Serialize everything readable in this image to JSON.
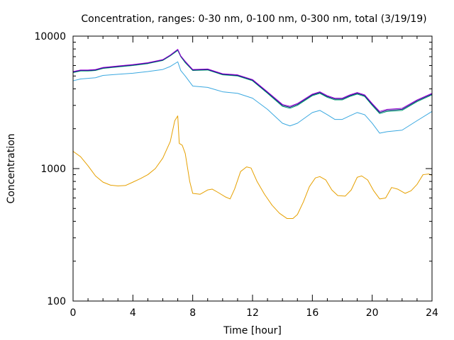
{
  "chart_data": {
    "type": "line",
    "title": "Concentration, ranges: 0-30 nm, 0-100 nm, 0-300 nm, total (3/19/19)",
    "xlabel": "Time [hour]",
    "ylabel": "Concentration",
    "xlim": [
      0,
      24
    ],
    "ylim": [
      100,
      10000
    ],
    "yscale": "log",
    "grid": false,
    "legend": "none",
    "x_ticks": [
      0,
      4,
      8,
      12,
      16,
      20,
      24
    ],
    "y_ticks": [
      100,
      1000,
      10000
    ],
    "x_tick_labels": [
      "0",
      "4",
      "8",
      "12",
      "16",
      "20",
      "24"
    ],
    "y_tick_labels": [
      "100",
      "1000",
      "10000"
    ],
    "x_minor_step": 1,
    "series": [
      {
        "color": "#e6a000",
        "points": [
          [
            0,
            1350
          ],
          [
            0.5,
            1230
          ],
          [
            1,
            1050
          ],
          [
            1.5,
            880
          ],
          [
            2,
            790
          ],
          [
            2.5,
            750
          ],
          [
            3,
            740
          ],
          [
            3.5,
            745
          ],
          [
            4,
            790
          ],
          [
            4.5,
            840
          ],
          [
            5,
            900
          ],
          [
            5.5,
            1000
          ],
          [
            6,
            1200
          ],
          [
            6.5,
            1600
          ],
          [
            6.8,
            2300
          ],
          [
            7,
            2500
          ],
          [
            7.1,
            1550
          ],
          [
            7.3,
            1500
          ],
          [
            7.5,
            1300
          ],
          [
            7.8,
            800
          ],
          [
            8,
            650
          ],
          [
            8.5,
            640
          ],
          [
            9,
            690
          ],
          [
            9.3,
            700
          ],
          [
            9.7,
            660
          ],
          [
            10.2,
            610
          ],
          [
            10.5,
            590
          ],
          [
            10.8,
            700
          ],
          [
            11.2,
            950
          ],
          [
            11.6,
            1030
          ],
          [
            11.9,
            1010
          ],
          [
            12.3,
            800
          ],
          [
            12.8,
            640
          ],
          [
            13.3,
            530
          ],
          [
            13.8,
            460
          ],
          [
            14.3,
            420
          ],
          [
            14.7,
            420
          ],
          [
            15,
            450
          ],
          [
            15.4,
            560
          ],
          [
            15.8,
            730
          ],
          [
            16.2,
            850
          ],
          [
            16.5,
            870
          ],
          [
            16.9,
            820
          ],
          [
            17.3,
            690
          ],
          [
            17.7,
            625
          ],
          [
            18.2,
            620
          ],
          [
            18.6,
            690
          ],
          [
            19,
            860
          ],
          [
            19.3,
            880
          ],
          [
            19.7,
            820
          ],
          [
            20.1,
            680
          ],
          [
            20.5,
            590
          ],
          [
            20.9,
            600
          ],
          [
            21.3,
            720
          ],
          [
            21.7,
            700
          ],
          [
            22.2,
            650
          ],
          [
            22.6,
            680
          ],
          [
            23,
            760
          ],
          [
            23.4,
            900
          ],
          [
            23.8,
            910
          ],
          [
            24,
            890
          ]
        ]
      },
      {
        "color": "#3aa8e0",
        "points": [
          [
            0,
            4600
          ],
          [
            0.5,
            4750
          ],
          [
            1,
            4800
          ],
          [
            1.5,
            4850
          ],
          [
            2,
            5050
          ],
          [
            3,
            5150
          ],
          [
            4,
            5250
          ],
          [
            5,
            5400
          ],
          [
            6,
            5600
          ],
          [
            6.5,
            5900
          ],
          [
            7,
            6400
          ],
          [
            7.2,
            5500
          ],
          [
            7.5,
            5000
          ],
          [
            8,
            4200
          ],
          [
            9,
            4100
          ],
          [
            10,
            3800
          ],
          [
            11,
            3700
          ],
          [
            12,
            3400
          ],
          [
            13,
            2800
          ],
          [
            14,
            2200
          ],
          [
            14.5,
            2100
          ],
          [
            15,
            2200
          ],
          [
            16,
            2650
          ],
          [
            16.5,
            2750
          ],
          [
            17,
            2550
          ],
          [
            17.5,
            2350
          ],
          [
            18,
            2350
          ],
          [
            18.5,
            2500
          ],
          [
            19,
            2650
          ],
          [
            19.5,
            2550
          ],
          [
            20,
            2200
          ],
          [
            20.5,
            1850
          ],
          [
            21,
            1900
          ],
          [
            22,
            1950
          ],
          [
            23,
            2300
          ],
          [
            24,
            2700
          ]
        ]
      },
      {
        "color": "#009e73",
        "points": [
          [
            0,
            5300
          ],
          [
            0.5,
            5450
          ],
          [
            1,
            5450
          ],
          [
            1.5,
            5500
          ],
          [
            2,
            5700
          ],
          [
            3,
            5850
          ],
          [
            4,
            6000
          ],
          [
            5,
            6200
          ],
          [
            6,
            6550
          ],
          [
            6.5,
            7100
          ],
          [
            7,
            7800
          ],
          [
            7.2,
            7000
          ],
          [
            7.5,
            6300
          ],
          [
            8,
            5500
          ],
          [
            9,
            5550
          ],
          [
            10,
            5100
          ],
          [
            11,
            5000
          ],
          [
            12,
            4600
          ],
          [
            13,
            3700
          ],
          [
            14,
            2950
          ],
          [
            14.5,
            2850
          ],
          [
            15,
            3000
          ],
          [
            16,
            3550
          ],
          [
            16.5,
            3700
          ],
          [
            17,
            3450
          ],
          [
            17.5,
            3300
          ],
          [
            18,
            3300
          ],
          [
            18.5,
            3500
          ],
          [
            19,
            3650
          ],
          [
            19.5,
            3500
          ],
          [
            20,
            3000
          ],
          [
            20.5,
            2600
          ],
          [
            21,
            2700
          ],
          [
            22,
            2750
          ],
          [
            23,
            3200
          ],
          [
            24,
            3600
          ]
        ]
      },
      {
        "color": "#0a1a7a",
        "points": [
          [
            0,
            5350
          ],
          [
            0.5,
            5500
          ],
          [
            1,
            5500
          ],
          [
            1.5,
            5550
          ],
          [
            2,
            5750
          ],
          [
            3,
            5900
          ],
          [
            4,
            6050
          ],
          [
            5,
            6250
          ],
          [
            6,
            6600
          ],
          [
            6.5,
            7150
          ],
          [
            7,
            7900
          ],
          [
            7.2,
            7050
          ],
          [
            7.5,
            6400
          ],
          [
            8,
            5550
          ],
          [
            9,
            5600
          ],
          [
            10,
            5150
          ],
          [
            11,
            5050
          ],
          [
            12,
            4650
          ],
          [
            13,
            3750
          ],
          [
            14,
            3000
          ],
          [
            14.5,
            2900
          ],
          [
            15,
            3050
          ],
          [
            16,
            3600
          ],
          [
            16.5,
            3750
          ],
          [
            17,
            3500
          ],
          [
            17.5,
            3350
          ],
          [
            18,
            3350
          ],
          [
            18.5,
            3550
          ],
          [
            19,
            3700
          ],
          [
            19.5,
            3550
          ],
          [
            20,
            3050
          ],
          [
            20.5,
            2650
          ],
          [
            21,
            2750
          ],
          [
            22,
            2800
          ],
          [
            23,
            3250
          ],
          [
            24,
            3650
          ]
        ]
      },
      {
        "color": "#9400d3",
        "points": [
          [
            0,
            5400
          ],
          [
            0.5,
            5550
          ],
          [
            1,
            5550
          ],
          [
            1.5,
            5600
          ],
          [
            2,
            5800
          ],
          [
            3,
            5950
          ],
          [
            4,
            6100
          ],
          [
            5,
            6300
          ],
          [
            6,
            6650
          ],
          [
            6.5,
            7200
          ],
          [
            7,
            7950
          ],
          [
            7.2,
            7100
          ],
          [
            7.5,
            6450
          ],
          [
            8,
            5600
          ],
          [
            9,
            5650
          ],
          [
            10,
            5200
          ],
          [
            11,
            5100
          ],
          [
            12,
            4700
          ],
          [
            13,
            3800
          ],
          [
            14,
            3050
          ],
          [
            14.5,
            2950
          ],
          [
            15,
            3100
          ],
          [
            16,
            3650
          ],
          [
            16.5,
            3800
          ],
          [
            17,
            3550
          ],
          [
            17.5,
            3400
          ],
          [
            18,
            3400
          ],
          [
            18.5,
            3600
          ],
          [
            19,
            3750
          ],
          [
            19.5,
            3600
          ],
          [
            20,
            3100
          ],
          [
            20.5,
            2700
          ],
          [
            21,
            2800
          ],
          [
            22,
            2850
          ],
          [
            23,
            3300
          ],
          [
            24,
            3700
          ]
        ]
      }
    ]
  }
}
